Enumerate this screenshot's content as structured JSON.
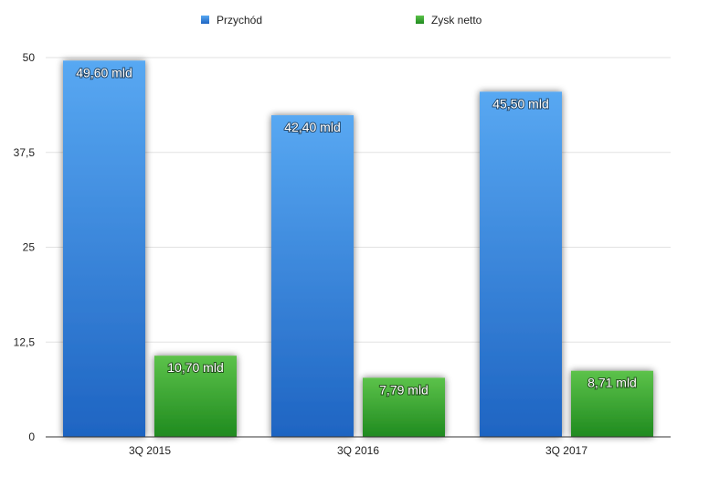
{
  "chart_data": {
    "type": "bar",
    "categories": [
      "3Q 2015",
      "3Q 2016",
      "3Q 2017"
    ],
    "series": [
      {
        "name": "Przychód",
        "color": "#2f7fd8",
        "values": [
          49.6,
          42.4,
          45.5
        ],
        "labels": [
          "49,60 mld",
          "42,40 mld",
          "45,50 mld"
        ]
      },
      {
        "name": "Zysk netto",
        "color": "#2e9a2e",
        "values": [
          10.7,
          7.79,
          8.71
        ],
        "labels": [
          "10,70 mld",
          "7,79 mld",
          "8,71 mld"
        ]
      }
    ],
    "ylim": [
      0,
      50
    ],
    "yticks": [
      0,
      12.5,
      25,
      37.5,
      50
    ],
    "ytick_labels": [
      "0",
      "12,5",
      "25",
      "37,5",
      "50"
    ],
    "grid": true,
    "legend_position": "top"
  }
}
